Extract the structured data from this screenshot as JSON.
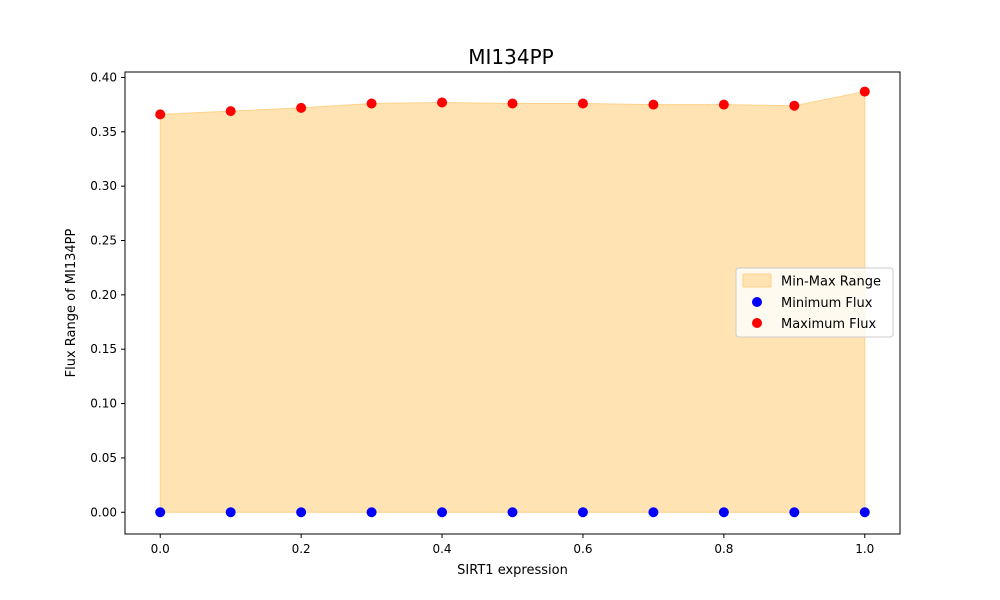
{
  "chart_data": {
    "type": "scatter",
    "title": "MI134PP",
    "xlabel": "SIRT1 expression",
    "ylabel": "Flux Range of MI134PP",
    "xlim": [
      -0.05,
      1.05
    ],
    "ylim": [
      -0.02,
      0.405
    ],
    "x_ticks": [
      0.0,
      0.2,
      0.4,
      0.6,
      0.8,
      1.0
    ],
    "x_tick_labels": [
      "0.0",
      "0.2",
      "0.4",
      "0.6",
      "0.8",
      "1.0"
    ],
    "y_ticks": [
      0.0,
      0.05,
      0.1,
      0.15,
      0.2,
      0.25,
      0.3,
      0.35,
      0.4
    ],
    "y_tick_labels": [
      "0.00",
      "0.05",
      "0.10",
      "0.15",
      "0.20",
      "0.25",
      "0.30",
      "0.35",
      "0.40"
    ],
    "grid": false,
    "legend_position": "center-right",
    "x": [
      0.0,
      0.1,
      0.2,
      0.3,
      0.4,
      0.5,
      0.6,
      0.7,
      0.8,
      0.9,
      1.0
    ],
    "series": [
      {
        "name": "Min-Max Range",
        "kind": "area",
        "color": "#ffe3b3",
        "edge_color": "#ffd28a"
      },
      {
        "name": "Minimum Flux",
        "kind": "scatter",
        "color": "#0000ff",
        "values": [
          0.0,
          0.0,
          0.0,
          0.0,
          0.0,
          0.0,
          0.0,
          0.0,
          0.0,
          0.0,
          0.0
        ]
      },
      {
        "name": "Maximum Flux",
        "kind": "scatter",
        "color": "#ff0000",
        "values": [
          0.366,
          0.369,
          0.372,
          0.376,
          0.377,
          0.376,
          0.376,
          0.375,
          0.375,
          0.374,
          0.387
        ]
      }
    ]
  }
}
